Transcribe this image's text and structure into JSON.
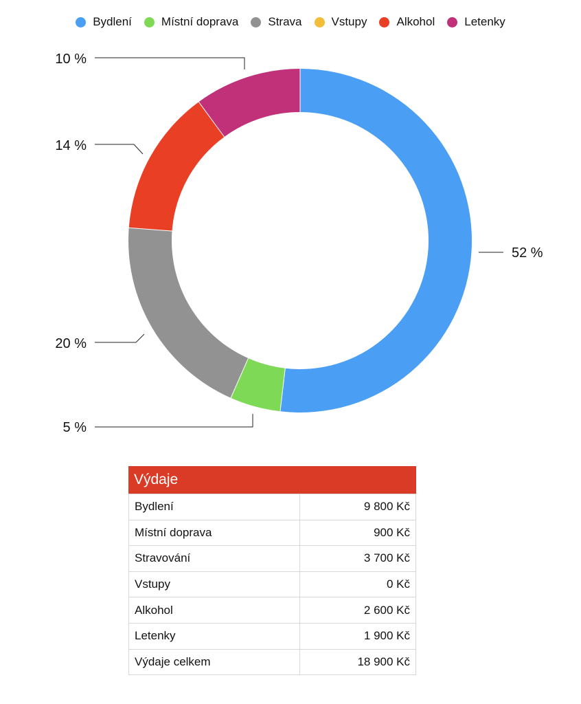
{
  "chart_data": {
    "type": "pie",
    "subtype": "donut",
    "legend_position": "top",
    "series": [
      {
        "name": "Bydlení",
        "value": 9800,
        "percent_label": "52 %",
        "color": "#4a9ff5"
      },
      {
        "name": "Místní doprava",
        "value": 900,
        "percent_label": "5 %",
        "color": "#7ed957"
      },
      {
        "name": "Strava",
        "value": 3700,
        "percent_label": "20 %",
        "color": "#929292"
      },
      {
        "name": "Vstupy",
        "value": 0,
        "percent_label": "",
        "color": "#f3bd3a"
      },
      {
        "name": "Alkohol",
        "value": 2600,
        "percent_label": "14 %",
        "color": "#e83f25"
      },
      {
        "name": "Letenky",
        "value": 1900,
        "percent_label": "10 %",
        "color": "#c1317a"
      }
    ]
  },
  "table": {
    "title": "Výdaje",
    "rows": [
      {
        "label": "Bydlení",
        "value": "9 800 Kč"
      },
      {
        "label": "Místní doprava",
        "value": "900 Kč"
      },
      {
        "label": "Stravování",
        "value": "3 700 Kč"
      },
      {
        "label": "Vstupy",
        "value": "0 Kč"
      },
      {
        "label": "Alkohol",
        "value": "2 600 Kč"
      },
      {
        "label": "Letenky",
        "value": "1 900 Kč"
      },
      {
        "label": "Výdaje celkem",
        "value": "18 900 Kč"
      }
    ]
  }
}
